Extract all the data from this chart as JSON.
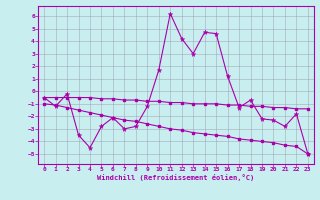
{
  "xlabel": "Windchill (Refroidissement éolien,°C)",
  "background_color": "#c8eef0",
  "grid_color": "#9999aa",
  "line_color": "#aa00aa",
  "xlim": [
    -0.5,
    23.5
  ],
  "ylim": [
    -5.8,
    6.8
  ],
  "yticks": [
    -5,
    -4,
    -3,
    -2,
    -1,
    0,
    1,
    2,
    3,
    4,
    5,
    6
  ],
  "xticks": [
    0,
    1,
    2,
    3,
    4,
    5,
    6,
    7,
    8,
    9,
    10,
    11,
    12,
    13,
    14,
    15,
    16,
    17,
    18,
    19,
    20,
    21,
    22,
    23
  ],
  "line1_x": [
    0,
    1,
    2,
    3,
    4,
    5,
    6,
    7,
    8,
    9,
    10,
    11,
    12,
    13,
    14,
    15,
    16,
    17,
    18,
    19,
    20,
    21,
    22,
    23
  ],
  "line1_y": [
    -0.5,
    -1.2,
    -0.2,
    -3.5,
    -4.5,
    -2.8,
    -2.1,
    -3.0,
    -2.8,
    -1.2,
    1.7,
    6.2,
    4.2,
    3.0,
    4.7,
    4.6,
    1.2,
    -1.3,
    -0.7,
    -2.2,
    -2.3,
    -2.8,
    -1.8,
    -5.0
  ],
  "line2_x": [
    0,
    1,
    2,
    3,
    4,
    5,
    6,
    7,
    8,
    9,
    10,
    11,
    12,
    13,
    14,
    15,
    16,
    17,
    18,
    19,
    20,
    21,
    22,
    23
  ],
  "line2_y": [
    -0.5,
    -0.5,
    -0.5,
    -0.5,
    -0.5,
    -0.6,
    -0.6,
    -0.7,
    -0.7,
    -0.8,
    -0.8,
    -0.9,
    -0.9,
    -1.0,
    -1.0,
    -1.0,
    -1.1,
    -1.1,
    -1.2,
    -1.2,
    -1.3,
    -1.3,
    -1.4,
    -1.4
  ],
  "line3_x": [
    0,
    1,
    2,
    3,
    4,
    5,
    6,
    7,
    8,
    9,
    10,
    11,
    12,
    13,
    14,
    15,
    16,
    17,
    18,
    19,
    20,
    21,
    22,
    23
  ],
  "line3_y": [
    -1.0,
    -1.1,
    -1.3,
    -1.5,
    -1.7,
    -1.9,
    -2.1,
    -2.3,
    -2.4,
    -2.6,
    -2.8,
    -3.0,
    -3.1,
    -3.3,
    -3.4,
    -3.5,
    -3.6,
    -3.8,
    -3.9,
    -4.0,
    -4.1,
    -4.3,
    -4.4,
    -5.0
  ]
}
